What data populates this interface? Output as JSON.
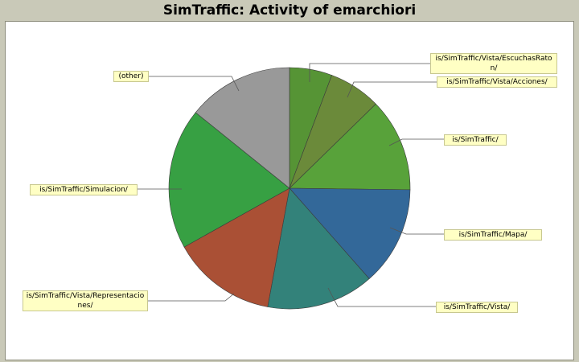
{
  "chart_data": {
    "type": "pie",
    "title": "SimTraffic: Activity of emarchiori",
    "slices": [
      {
        "label": "is/SimTraffic/Vista/EscuchasRaton/",
        "value": 5.7,
        "color": "#569435"
      },
      {
        "label": "is/SimTraffic/Vista/Acciones/",
        "value": 7.0,
        "color": "#6b8a3a"
      },
      {
        "label": "is/SimTraffic/",
        "value": 12.5,
        "color": "#58a23a"
      },
      {
        "label": "is/SimTraffic/Mapa/",
        "value": 13.3,
        "color": "#336899"
      },
      {
        "label": "is/SimTraffic/Vista/",
        "value": 14.4,
        "color": "#33827a"
      },
      {
        "label": "is/SimTraffic/Vista/Representaciones/",
        "value": 14.0,
        "color": "#aa5035"
      },
      {
        "label": "is/SimTraffic/Simulacion/",
        "value": 18.9,
        "color": "#37a043"
      },
      {
        "label": "(other)",
        "value": 14.2,
        "color": "#999999"
      }
    ]
  }
}
